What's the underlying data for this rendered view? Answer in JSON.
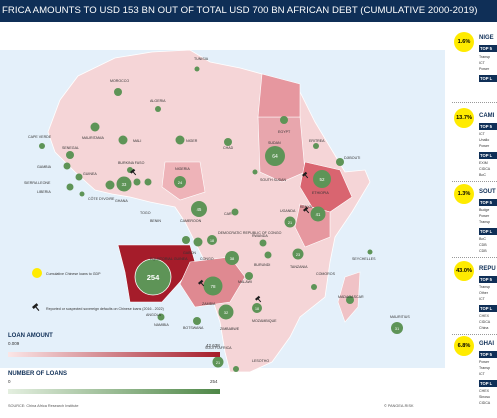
{
  "header": {
    "title": "FRICA AMOUNTS TO USD 153 BN OUT OF TOTAL USD 700 BN AFRICAN DEBT (CUMULATIVE 2000-2019)"
  },
  "countries": [
    {
      "name": "TUNISIA",
      "loans": 1
    },
    {
      "name": "MOROCCO",
      "loans": 6
    },
    {
      "name": "ALGERIA",
      "loans": 2
    },
    {
      "name": "EGYPT",
      "loans": 6
    },
    {
      "name": "MAURITANIA",
      "loans": 9
    },
    {
      "name": "MALI",
      "loans": 8
    },
    {
      "name": "NIGER",
      "loans": 9
    },
    {
      "name": "CHAD",
      "loans": 5
    },
    {
      "name": "SUDAN",
      "loans": 64
    },
    {
      "name": "ERITREA",
      "loans": 4
    },
    {
      "name": "DJIBOUTI",
      "loans": 13
    },
    {
      "name": "ETHIOPIA",
      "loans": 52
    },
    {
      "name": "SOUTH SUDAN",
      "loans": 1
    },
    {
      "name": "SENEGAL",
      "loans": 12
    },
    {
      "name": "GAMBIA",
      "loans": 5
    },
    {
      "name": "GUINEA",
      "loans": 5
    },
    {
      "name": "SIERRA LEONE",
      "loans": 7
    },
    {
      "name": "LIBERIA",
      "loans": 2
    },
    {
      "name": "CÔTE D'IVOIRE",
      "loans": 13
    },
    {
      "name": "BURKINA FASO",
      "loans": 2
    },
    {
      "name": "GHANA",
      "loans": 33
    },
    {
      "name": "TOGO",
      "loans": 7
    },
    {
      "name": "BENIN",
      "loans": 9
    },
    {
      "name": "NIGERIA",
      "loans": 24
    },
    {
      "name": "CAMEROON",
      "loans": 45
    },
    {
      "name": "CAR",
      "loans": 5
    },
    {
      "name": "EQUATORIAL GUINEA",
      "loans": 12
    },
    {
      "name": "GABON",
      "loans": 14
    },
    {
      "name": "CONGO",
      "loans": 18
    },
    {
      "name": "DEMOCRATIC REPUBLIC OF CONGO",
      "loans": 38
    },
    {
      "name": "UGANDA",
      "loans": 21
    },
    {
      "name": "KENYA",
      "loans": 41
    },
    {
      "name": "RWANDA",
      "loans": 5
    },
    {
      "name": "BURUNDI",
      "loans": 5
    },
    {
      "name": "TANZANIA",
      "loans": 23
    },
    {
      "name": "ANGOLA",
      "loans": 254
    },
    {
      "name": "ZAMBIA",
      "loans": 78
    },
    {
      "name": "MALAWI",
      "loans": 12
    },
    {
      "name": "MOZAMBIQUE",
      "loans": 18
    },
    {
      "name": "ZIMBABWE",
      "loans": 32
    },
    {
      "name": "NAMIBIA",
      "loans": 5
    },
    {
      "name": "BOTSWANA",
      "loans": 7
    },
    {
      "name": "SOUTH AFRICA",
      "loans": 21
    },
    {
      "name": "LESOTHO",
      "loans": 5
    },
    {
      "name": "MADAGASCAR",
      "loans": 12
    },
    {
      "name": "COMOROS",
      "loans": 3
    },
    {
      "name": "SEYCHELLES",
      "loans": 4
    },
    {
      "name": "MAURITIUS",
      "loans": 31
    },
    {
      "name": "CAPE VERDE",
      "loans": 8
    }
  ],
  "map_legend": {
    "gdp_label": "Cumulative Chinese loans to GDP",
    "default_label": "Reported or suspected sovereign defaults on Chinese loans (2016 - 2022)"
  },
  "scale_legend": {
    "loan_amount_title": "LOAN AMOUNT",
    "loan_min": "0.009",
    "loan_max": "42.638",
    "number_title": "NUMBER OF LOANS",
    "number_min": "0",
    "number_max": "254"
  },
  "source": "SOURCE: China Africa Research Institute",
  "credit": "© PANGEA-RISK",
  "side_panels": [
    {
      "pct": "1.6%",
      "country": "NIGE",
      "top": "TOP 5",
      "items": [
        "Transp",
        "ICT",
        "Power"
      ],
      "top2": "TOP L",
      "items2": []
    },
    {
      "pct": "13.7%",
      "country": "CAMI",
      "top": "TOP 5",
      "items": [
        "ICT",
        "Unallo",
        "Power"
      ],
      "top2": "TOP L",
      "items2": [
        "EXIM",
        "CIDCA",
        "BoC"
      ]
    },
    {
      "pct": "1.3%",
      "country": "SOUT",
      "top": "TOP 5",
      "items": [
        "Budge",
        "Power",
        "Transp"
      ],
      "top2": "TOP L",
      "items2": [
        "BoC",
        "CDB",
        "CDB"
      ]
    },
    {
      "pct": "43.0%",
      "country": "REPU",
      "top": "TOP 5",
      "items": [
        "Transp",
        "Other",
        "ICT"
      ],
      "top2": "TOP L",
      "items2": [
        "CHEX",
        "CIDCA",
        "China"
      ]
    },
    {
      "pct": "6.8%",
      "country": "GHAI",
      "top": "TOP 5",
      "items": [
        "Power",
        "Transp",
        "ICT"
      ],
      "top2": "TOP L",
      "items2": [
        "CHEX",
        "Sinosu",
        "CIDCA"
      ]
    }
  ],
  "colors": {
    "header": "#0f2f57",
    "ocean": "#e4f0fa",
    "land_light": "#f5d5d7",
    "land_mid": "#e8959d",
    "land_dark": "#a51c2a",
    "circle": "#5e9457",
    "gdp": "#ffeb00"
  }
}
